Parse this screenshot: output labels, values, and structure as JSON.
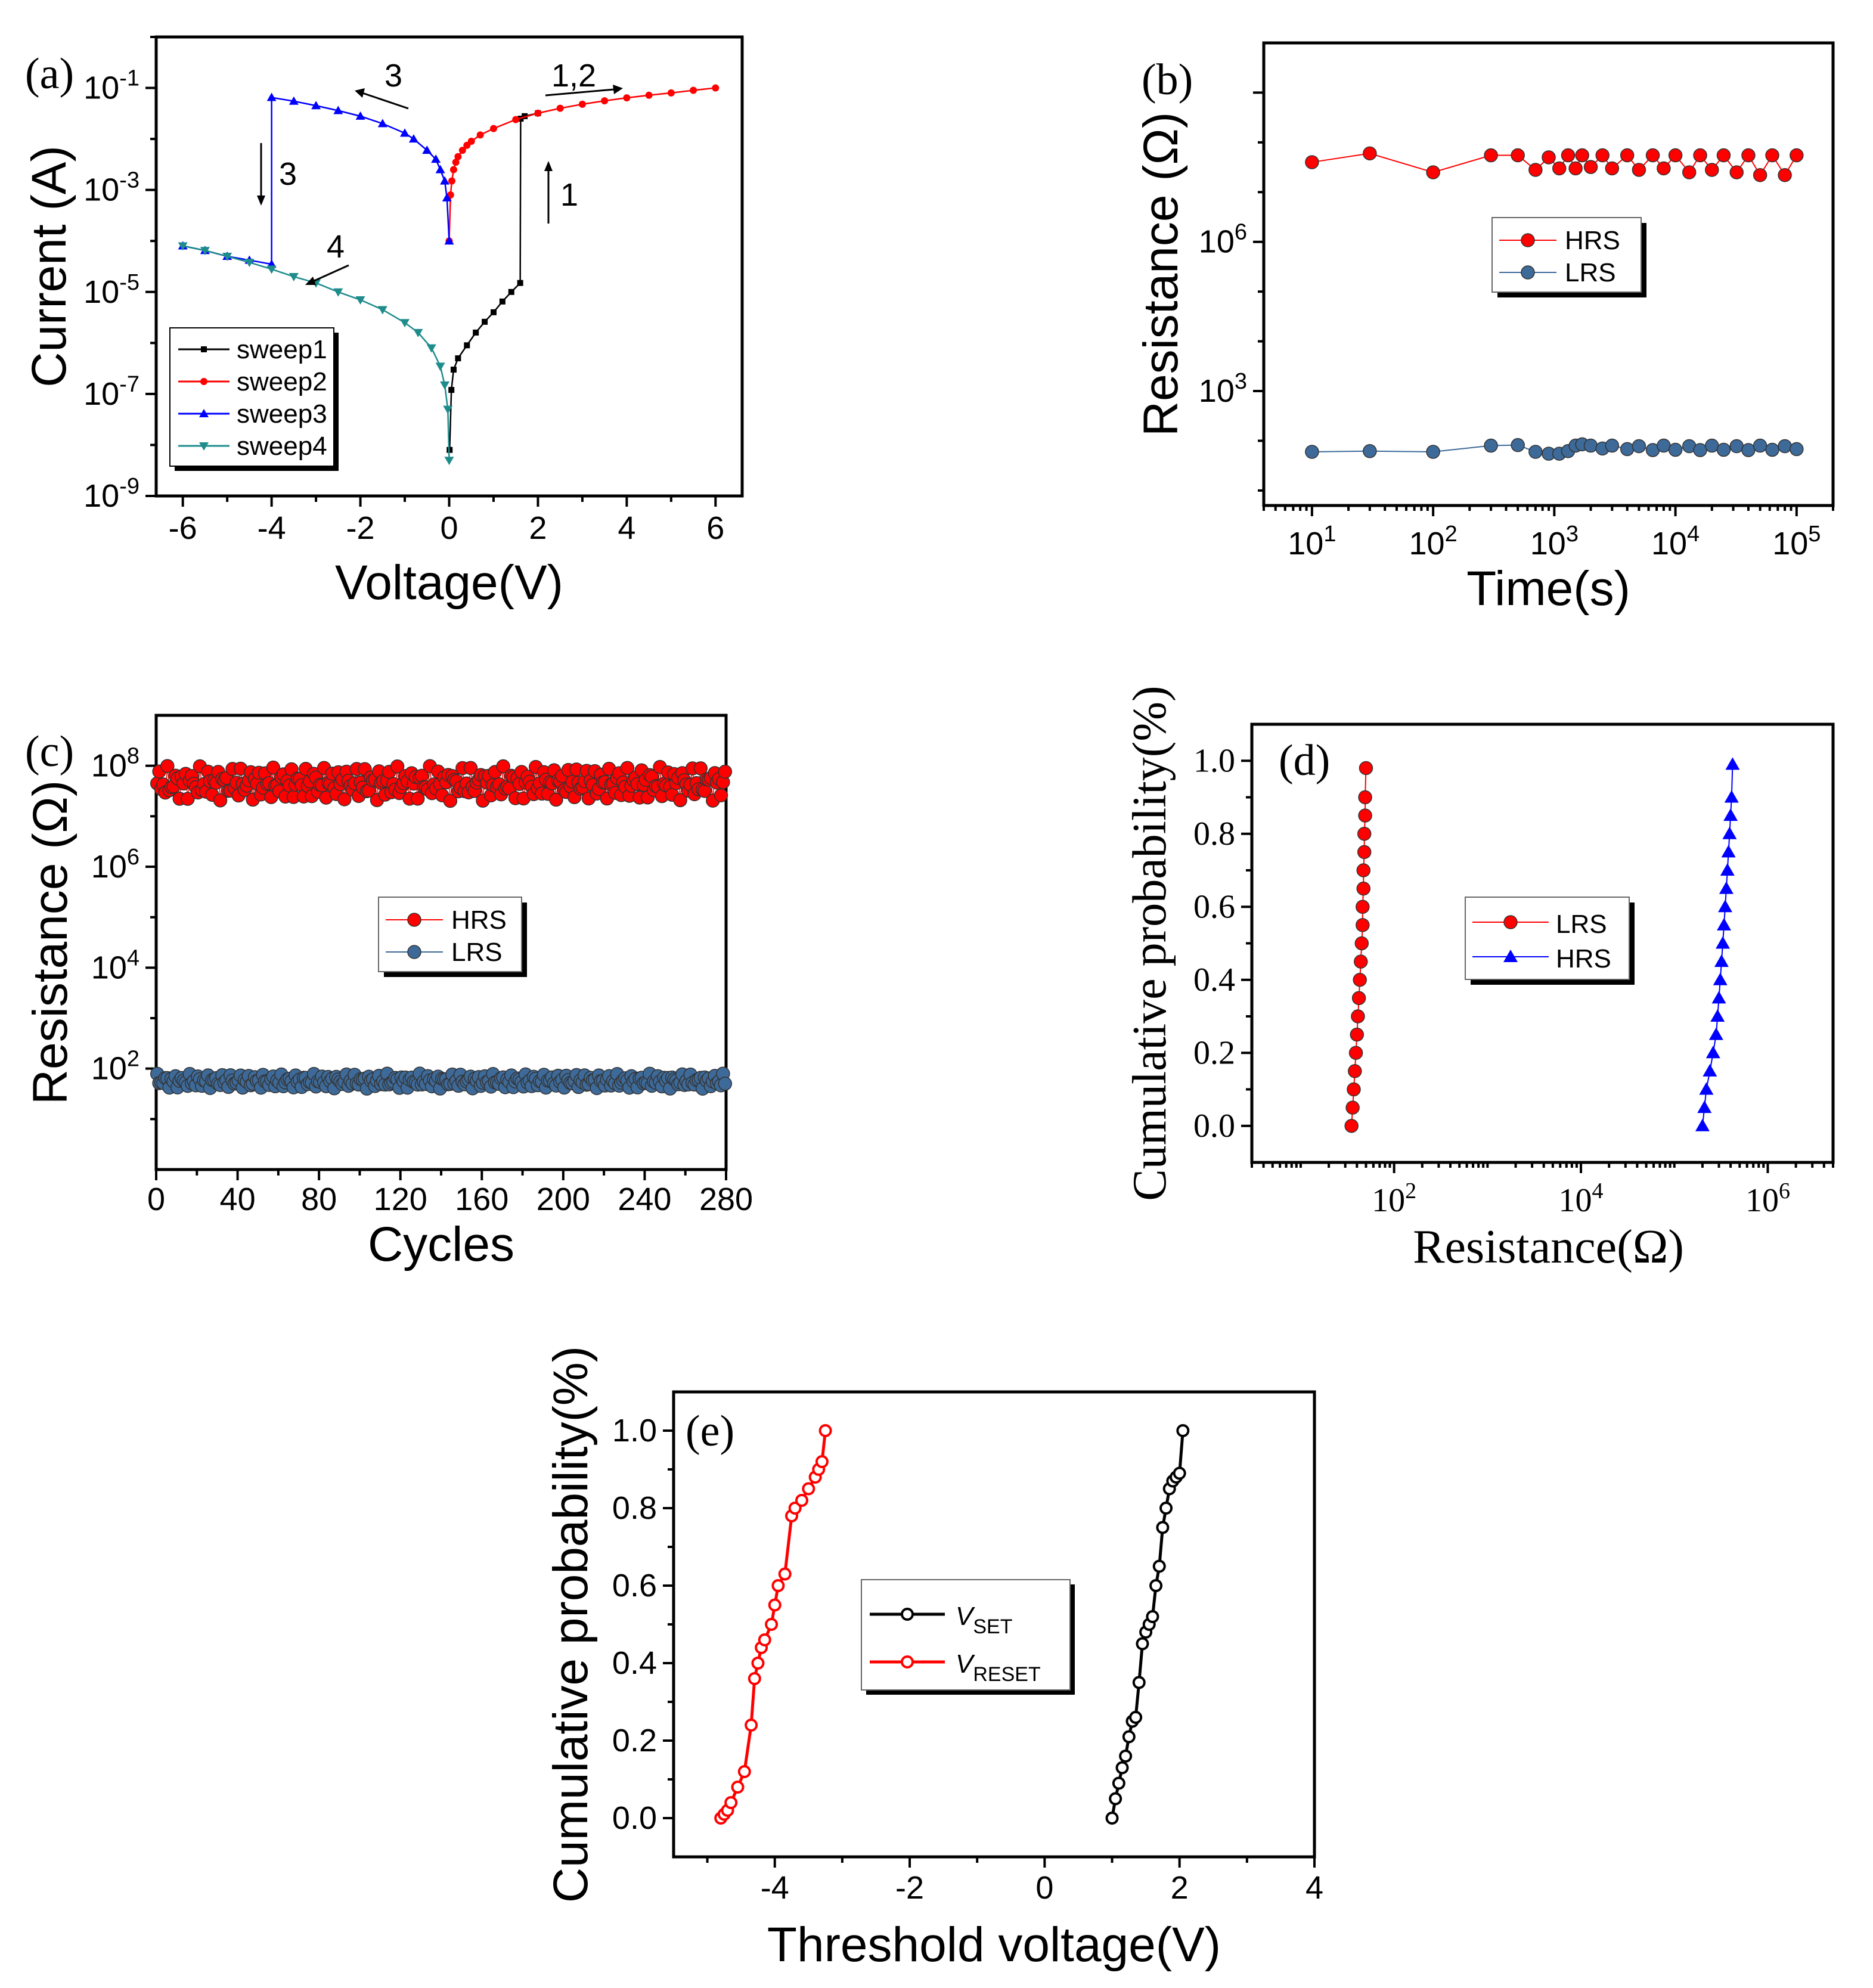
{
  "chart_data": [
    {
      "id": "a",
      "type": "line",
      "panel_label": "(a)",
      "xlabel": "Voltage(V)",
      "ylabel": "Current (A)",
      "yscale": "log",
      "xlim": [
        -6.6,
        6.6
      ],
      "ylim": [
        1e-09,
        1
      ],
      "xticks": [
        -6,
        -4,
        -2,
        0,
        2,
        4,
        6
      ],
      "xtick_labels": [
        "-6",
        "-4",
        "-2",
        "0",
        "2",
        "4",
        "6"
      ],
      "yticks": [
        1e-09,
        1e-07,
        1e-05,
        0.001,
        0.1
      ],
      "ytick_labels": [
        [
          "10",
          "-9"
        ],
        [
          "10",
          "-7"
        ],
        [
          "10",
          "-5"
        ],
        [
          "10",
          "-3"
        ],
        [
          "10",
          "-1"
        ]
      ],
      "legend": [
        "sweep1",
        "sweep2",
        "sweep3",
        "sweep4"
      ],
      "annotations": [
        "1,2",
        "3",
        "3",
        "1",
        "4"
      ],
      "series": [
        {
          "name": "sweep1",
          "color": "#000000",
          "marker": "square",
          "x": [
            0.01,
            0.05,
            0.1,
            0.2,
            0.4,
            0.6,
            0.8,
            1.0,
            1.2,
            1.4,
            1.6,
            1.61,
            1.7,
            2.0
          ],
          "y": [
            8e-09,
            1.2e-07,
            3e-07,
            5e-07,
            9e-07,
            1.6e-06,
            2.6e-06,
            4e-06,
            6.5e-06,
            1e-05,
            1.5e-05,
            0.025,
            0.028,
            0.032
          ]
        },
        {
          "name": "sweep2",
          "color": "#ff0000",
          "marker": "circle",
          "x": [
            0.0,
            0.03,
            0.06,
            0.1,
            0.15,
            0.2,
            0.3,
            0.4,
            0.5,
            0.7,
            1.0,
            1.5,
            2.0,
            2.5,
            3.0,
            3.5,
            4.0,
            4.5,
            5.0,
            5.5,
            6.0
          ],
          "y": [
            0.0001,
            0.0008,
            0.0015,
            0.0025,
            0.0035,
            0.0045,
            0.006,
            0.0075,
            0.009,
            0.012,
            0.016,
            0.024,
            0.032,
            0.04,
            0.048,
            0.056,
            0.064,
            0.072,
            0.08,
            0.09,
            0.1
          ]
        },
        {
          "name": "sweep3",
          "color": "#0000ff",
          "marker": "triangle-up",
          "x": [
            0.0,
            -0.05,
            -0.1,
            -0.2,
            -0.3,
            -0.5,
            -0.8,
            -1.0,
            -1.5,
            -2.0,
            -2.5,
            -3.0,
            -3.5,
            -4.0,
            -4.0,
            -4.5,
            -5.0,
            -5.5,
            -6.0
          ],
          "y": [
            0.0001,
            0.0007,
            0.0015,
            0.0025,
            0.004,
            0.006,
            0.01,
            0.013,
            0.02,
            0.028,
            0.036,
            0.045,
            0.055,
            0.065,
            3.5e-05,
            4.2e-05,
            5e-05,
            6.5e-05,
            8e-05
          ]
        },
        {
          "name": "sweep4",
          "color": "#1f8c8c",
          "marker": "triangle-down",
          "x": [
            0.0,
            -0.03,
            -0.1,
            -0.2,
            -0.4,
            -0.7,
            -1.0,
            -1.5,
            -2.0,
            -2.5,
            -3.0,
            -3.5,
            -4.0,
            -4.5,
            -5.0,
            -5.5,
            -6.0
          ],
          "y": [
            5e-09,
            5e-08,
            1.5e-07,
            3.5e-07,
            8e-07,
            1.6e-06,
            2.5e-06,
            4.5e-06,
            7e-06,
            1e-05,
            1.5e-05,
            2e-05,
            2.8e-05,
            3.8e-05,
            5e-05,
            6.5e-05,
            8e-05
          ]
        }
      ]
    },
    {
      "id": "b",
      "type": "scatter",
      "panel_label": "(b)",
      "xlabel": "Time(s)",
      "ylabel": "Resistance (Ω)",
      "xscale": "log",
      "yscale": "log",
      "xlim": [
        4,
        200000
      ],
      "ylim": [
        5,
        10000000000
      ],
      "xticks": [
        10,
        100,
        1000,
        10000,
        100000
      ],
      "xtick_labels": [
        [
          "10",
          "1"
        ],
        [
          "10",
          "2"
        ],
        [
          "10",
          "3"
        ],
        [
          "10",
          "4"
        ],
        [
          "10",
          "5"
        ]
      ],
      "yticks": [
        1000,
        1000000
      ],
      "ytick_labels": [
        [
          "10",
          "3"
        ],
        [
          "10",
          "6"
        ]
      ],
      "legend": [
        "HRS",
        "LRS"
      ],
      "series": [
        {
          "name": "HRS",
          "color": "#ff0000",
          "x": [
            10,
            30,
            100,
            300,
            500,
            700,
            900,
            1100,
            1300,
            1500,
            1700,
            2000,
            2500,
            3000,
            4000,
            5000,
            6500,
            8000,
            10000,
            13000,
            16000,
            20000,
            25000,
            32000,
            40000,
            50000,
            63000,
            80000,
            100000
          ],
          "y": [
            40000000,
            60000000,
            25000000,
            55000000,
            55000000,
            28000000,
            50000000,
            30000000,
            55000000,
            30000000,
            55000000,
            32000000,
            55000000,
            30000000,
            55000000,
            28000000,
            55000000,
            30000000,
            55000000,
            25000000,
            55000000,
            28000000,
            55000000,
            25000000,
            55000000,
            22000000,
            55000000,
            22000000,
            55000000
          ]
        },
        {
          "name": "LRS",
          "color": "#3d6a99",
          "x": [
            10,
            30,
            100,
            300,
            500,
            700,
            900,
            1100,
            1300,
            1500,
            1700,
            2000,
            2500,
            3000,
            4000,
            5000,
            6500,
            8000,
            10000,
            13000,
            16000,
            20000,
            25000,
            32000,
            40000,
            50000,
            63000,
            80000,
            100000
          ],
          "y": [
            60,
            62,
            60,
            80,
            82,
            60,
            55,
            55,
            62,
            80,
            85,
            80,
            70,
            80,
            68,
            78,
            65,
            80,
            66,
            78,
            65,
            80,
            66,
            78,
            65,
            80,
            66,
            78,
            68
          ]
        }
      ]
    },
    {
      "id": "c",
      "type": "scatter",
      "panel_label": "(c)",
      "xlabel": "Cycles",
      "ylabel": "Resistance (Ω)",
      "yscale": "log",
      "xlim": [
        0,
        280
      ],
      "ylim": [
        1,
        1000000000
      ],
      "xticks": [
        0,
        40,
        80,
        120,
        160,
        200,
        240,
        280
      ],
      "xtick_labels": [
        "0",
        "40",
        "80",
        "120",
        "160",
        "200",
        "240",
        "280"
      ],
      "yticks": [
        100,
        10000,
        1000000,
        100000000
      ],
      "ytick_labels": [
        [
          "10",
          "2"
        ],
        [
          "10",
          "4"
        ],
        [
          "10",
          "6"
        ],
        [
          "10",
          "8"
        ]
      ],
      "legend": [
        "HRS",
        "LRS"
      ],
      "series": [
        {
          "name": "HRS",
          "color": "#ff0000",
          "count": 280,
          "y_range": [
            20000000,
            100000000
          ],
          "y_typical": 60000000
        },
        {
          "name": "LRS",
          "color": "#3d6a99",
          "count": 280,
          "y_range": [
            40,
            80
          ],
          "y_typical": 55
        }
      ]
    },
    {
      "id": "d",
      "type": "scatter",
      "panel_label": "(d)",
      "xlabel": "Resistance(Ω)",
      "ylabel": "Cumulative probability(%)",
      "xscale": "log",
      "xlim": [
        3,
        5000000
      ],
      "ylim": [
        -0.1,
        1.1
      ],
      "xticks": [
        100,
        10000,
        1000000
      ],
      "xtick_labels": [
        [
          "10",
          "2"
        ],
        [
          "10",
          "4"
        ],
        [
          "10",
          "6"
        ]
      ],
      "yticks": [
        0.0,
        0.2,
        0.4,
        0.6,
        0.8,
        1.0
      ],
      "ytick_labels": [
        "0.0",
        "0.2",
        "0.4",
        "0.6",
        "0.8",
        "1.0"
      ],
      "legend": [
        "LRS",
        "HRS"
      ],
      "series": [
        {
          "name": "LRS",
          "color": "#ff0000",
          "x": [
            35,
            36,
            37,
            38,
            39,
            40,
            41,
            42,
            43,
            44,
            45,
            46,
            46,
            47,
            47,
            48,
            48,
            49,
            49,
            50
          ],
          "y": [
            0.0,
            0.05,
            0.1,
            0.15,
            0.2,
            0.25,
            0.3,
            0.35,
            0.4,
            0.45,
            0.5,
            0.55,
            0.6,
            0.65,
            0.7,
            0.75,
            0.8,
            0.85,
            0.9,
            0.98
          ]
        },
        {
          "name": "HRS",
          "color": "#0000ff",
          "x": [
            200000,
            210000,
            220000,
            240000,
            260000,
            280000,
            290000,
            300000,
            310000,
            320000,
            330000,
            340000,
            350000,
            360000,
            370000,
            380000,
            390000,
            400000,
            410000,
            420000
          ],
          "y": [
            0.0,
            0.05,
            0.1,
            0.15,
            0.2,
            0.25,
            0.3,
            0.35,
            0.4,
            0.45,
            0.5,
            0.55,
            0.6,
            0.65,
            0.7,
            0.75,
            0.8,
            0.85,
            0.9,
            0.99
          ]
        }
      ]
    },
    {
      "id": "e",
      "type": "line",
      "panel_label": "(e)",
      "xlabel": "Threshold voltage(V)",
      "ylabel": "Cumulative probability(%)",
      "xlim": [
        -5.5,
        4
      ],
      "ylim": [
        -0.1,
        1.1
      ],
      "xticks": [
        -4,
        -2,
        0,
        2,
        4
      ],
      "xtick_labels": [
        "-4",
        "-2",
        "0",
        "2",
        "4"
      ],
      "yticks": [
        0.0,
        0.2,
        0.4,
        0.6,
        0.8,
        1.0
      ],
      "ytick_labels": [
        "0.0",
        "0.2",
        "0.4",
        "0.6",
        "0.8",
        "1.0"
      ],
      "legend": [
        [
          "V",
          "SET"
        ],
        [
          "V",
          "RESET"
        ]
      ],
      "series": [
        {
          "name": "VSET",
          "color": "#000000",
          "x": [
            1.0,
            1.05,
            1.1,
            1.15,
            1.2,
            1.25,
            1.3,
            1.35,
            1.4,
            1.45,
            1.5,
            1.55,
            1.6,
            1.65,
            1.7,
            1.75,
            1.8,
            1.85,
            1.9,
            1.95,
            2.0,
            2.05
          ],
          "y": [
            0.0,
            0.05,
            0.09,
            0.13,
            0.16,
            0.21,
            0.25,
            0.26,
            0.35,
            0.45,
            0.48,
            0.5,
            0.52,
            0.6,
            0.65,
            0.75,
            0.8,
            0.85,
            0.87,
            0.88,
            0.89,
            1.0
          ]
        },
        {
          "name": "VRESET",
          "color": "#ff0000",
          "x": [
            -4.8,
            -4.75,
            -4.7,
            -4.65,
            -4.55,
            -4.45,
            -4.35,
            -4.3,
            -4.25,
            -4.2,
            -4.15,
            -4.05,
            -4.0,
            -3.95,
            -3.85,
            -3.75,
            -3.7,
            -3.6,
            -3.5,
            -3.4,
            -3.35,
            -3.3,
            -3.25
          ],
          "y": [
            0.0,
            0.01,
            0.02,
            0.04,
            0.08,
            0.12,
            0.24,
            0.36,
            0.4,
            0.44,
            0.46,
            0.5,
            0.55,
            0.6,
            0.63,
            0.78,
            0.8,
            0.82,
            0.85,
            0.88,
            0.9,
            0.92,
            1.0
          ]
        }
      ]
    }
  ]
}
